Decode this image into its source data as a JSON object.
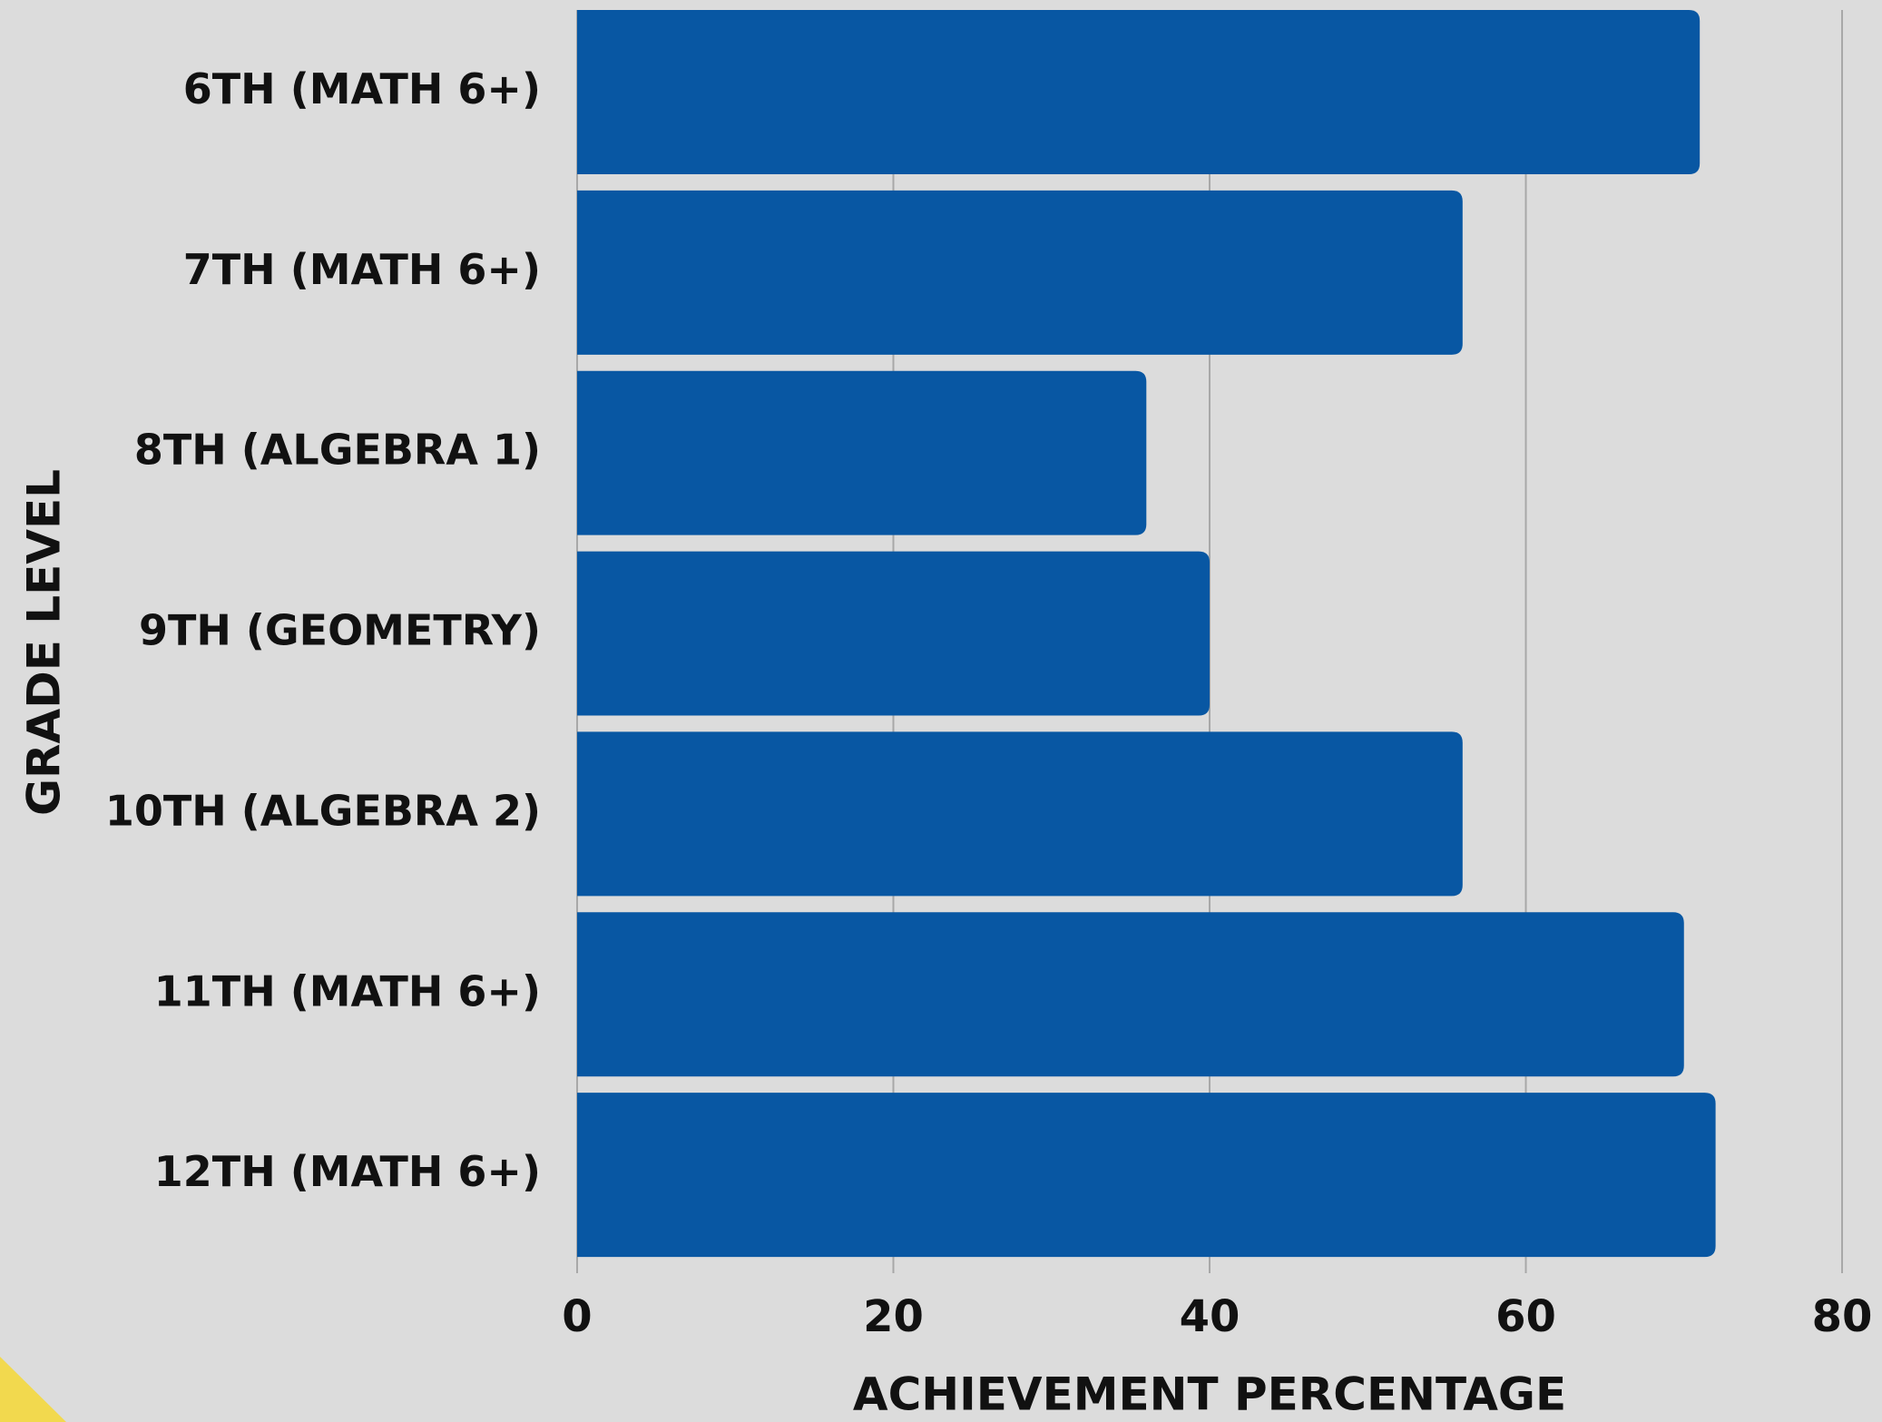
{
  "chart_data": {
    "type": "barh",
    "categories": [
      "6TH (MATH 6+)",
      "7TH (MATH 6+)",
      "8TH (ALGEBRA 1)",
      "9TH (GEOMETRY)",
      "10TH (ALGEBRA 2)",
      "11TH (MATH 6+)",
      "12TH (MATH 6+)"
    ],
    "values": [
      71,
      56,
      36,
      40,
      56,
      70,
      72
    ],
    "color": "#0857a3",
    "xlim": [
      0,
      80
    ],
    "xticks": [
      0,
      20,
      40,
      60,
      80
    ],
    "grid": true,
    "xlabel": "ACHIEVEMENT PERCENTAGE",
    "ylabel": "GRADE LEVEL"
  }
}
